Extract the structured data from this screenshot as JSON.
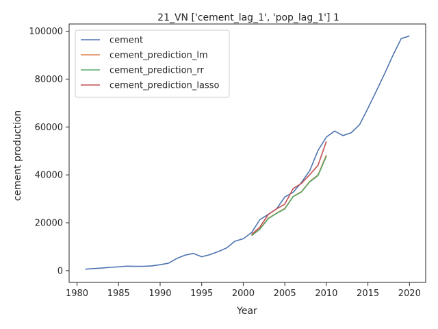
{
  "chart_data": {
    "type": "line",
    "title": "21_VN ['cement_lag_1', 'pop_lag_1'] 1",
    "xlabel": "Year",
    "ylabel": "cement production",
    "xlim": [
      1979.05,
      2021.95
    ],
    "ylim": [
      -4890,
      103000
    ],
    "x_ticks": [
      1980,
      1985,
      1990,
      1995,
      2000,
      2005,
      2010,
      2015,
      2020
    ],
    "y_ticks": [
      0,
      20000,
      40000,
      60000,
      80000,
      100000
    ],
    "grid": false,
    "legend_position": "upper-left",
    "series": [
      {
        "name": "cement",
        "color": "#4c72b0",
        "x": [
          1981,
          1982,
          1983,
          1984,
          1985,
          1986,
          1987,
          1988,
          1989,
          1990,
          1991,
          1992,
          1993,
          1994,
          1995,
          1996,
          1997,
          1998,
          1999,
          2000,
          2001,
          2002,
          2003,
          2004,
          2005,
          2006,
          2007,
          2008,
          2009,
          2010,
          2011,
          2012,
          2013,
          2014,
          2015,
          2016,
          2017,
          2018,
          2019,
          2020
        ],
        "y": [
          600,
          900,
          1100,
          1400,
          1600,
          1900,
          1800,
          1800,
          2000,
          2500,
          3100,
          5100,
          6500,
          7200,
          5800,
          6700,
          8000,
          9500,
          12300,
          13300,
          15900,
          21300,
          23500,
          25800,
          30800,
          32700,
          36800,
          41800,
          50200,
          55800,
          58300,
          56400,
          57600,
          61000,
          67800,
          74900,
          82200,
          89800,
          96900,
          98000
        ]
      },
      {
        "name": "cement_prediction_lm",
        "color": "#dd8452",
        "x": [
          2001,
          2002,
          2003,
          2004,
          2005,
          2006,
          2007,
          2008,
          2009,
          2010
        ],
        "y": [
          14700,
          17500,
          21900,
          24000,
          26000,
          31000,
          33000,
          37300,
          40000,
          48300
        ]
      },
      {
        "name": "cement_prediction_rr",
        "color": "#55a868",
        "x": [
          2001,
          2002,
          2003,
          2004,
          2005,
          2006,
          2007,
          2008,
          2009,
          2010
        ],
        "y": [
          14600,
          17300,
          21700,
          23900,
          25800,
          30900,
          32800,
          37100,
          39700,
          47800
        ]
      },
      {
        "name": "cement_prediction_lasso",
        "color": "#c44e52",
        "x": [
          2001,
          2002,
          2003,
          2004,
          2005,
          2006,
          2007,
          2008,
          2009,
          2010
        ],
        "y": [
          15100,
          18200,
          23400,
          25800,
          27800,
          34300,
          36400,
          40100,
          44000,
          54000
        ]
      }
    ]
  }
}
